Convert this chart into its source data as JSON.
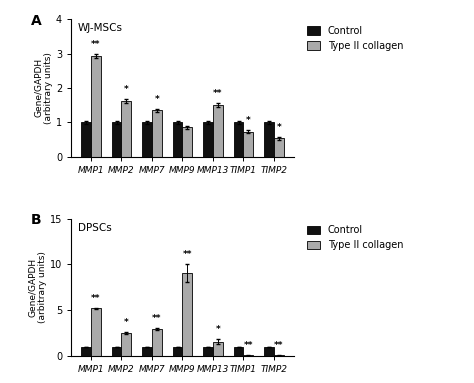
{
  "panel_A": {
    "title": "WJ-MSCs",
    "categories": [
      "MMP1",
      "MMP2",
      "MMP7",
      "MMP9",
      "MMP13",
      "TIMP1",
      "TIMP2"
    ],
    "control": [
      1.0,
      1.0,
      1.0,
      1.0,
      1.0,
      1.0,
      1.0
    ],
    "control_err": [
      0.04,
      0.04,
      0.04,
      0.04,
      0.04,
      0.04,
      0.04
    ],
    "typeII": [
      2.93,
      1.62,
      1.35,
      0.85,
      1.5,
      0.73,
      0.54
    ],
    "typeII_err": [
      0.07,
      0.06,
      0.05,
      0.04,
      0.06,
      0.04,
      0.04
    ],
    "significance": [
      "**",
      "*",
      "*",
      "",
      "**",
      "*",
      "*"
    ],
    "ylim": [
      0,
      4
    ],
    "yticks": [
      0,
      1,
      2,
      3,
      4
    ]
  },
  "panel_B": {
    "title": "DPSCs",
    "categories": [
      "MMP1",
      "MMP2",
      "MMP7",
      "MMP9",
      "MMP13",
      "TIMP1",
      "TIMP2"
    ],
    "control": [
      1.0,
      1.0,
      1.0,
      1.0,
      1.0,
      1.0,
      1.0
    ],
    "control_err": [
      0.04,
      0.04,
      0.04,
      0.04,
      0.04,
      0.04,
      0.04
    ],
    "typeII": [
      5.2,
      2.55,
      3.0,
      9.1,
      1.6,
      0.08,
      0.08
    ],
    "typeII_err": [
      0.1,
      0.1,
      0.1,
      1.0,
      0.3,
      0.03,
      0.03
    ],
    "significance": [
      "**",
      "*",
      "**",
      "**",
      "*",
      "**",
      "**"
    ],
    "ylim": [
      0,
      15
    ],
    "yticks": [
      0,
      5,
      10,
      15
    ]
  },
  "color_control": "#111111",
  "color_typeII": "#aaaaaa",
  "bar_width": 0.32,
  "ylabel": "Gene/GAPDH\n(arbitrary units)",
  "legend_labels": [
    "Control",
    "Type II collagen"
  ]
}
